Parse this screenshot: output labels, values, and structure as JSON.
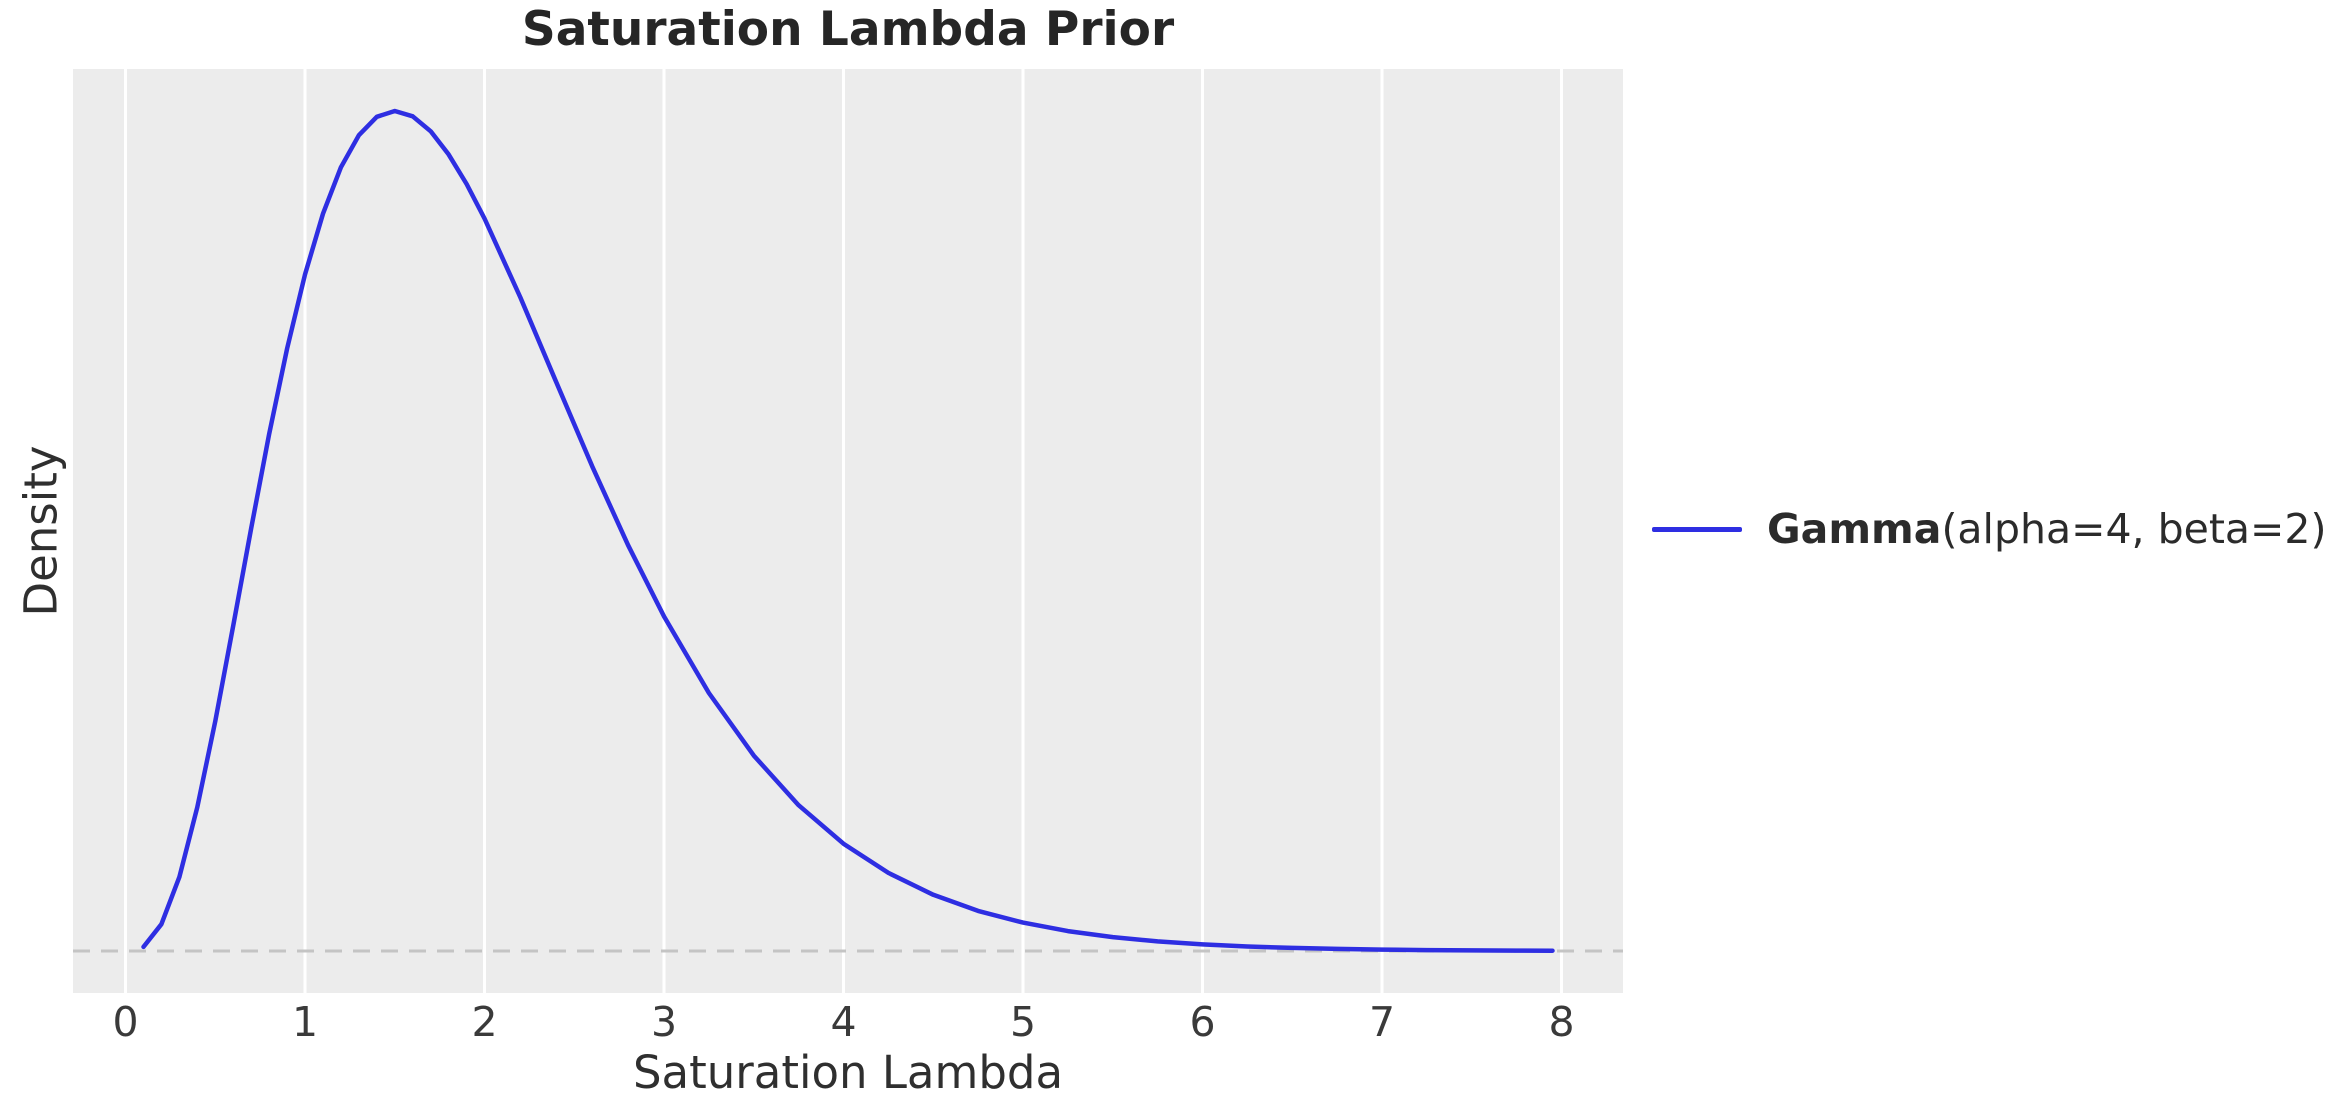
{
  "chart_data": {
    "type": "line",
    "title": "Saturation Lambda Prior",
    "xlabel": "Saturation Lambda",
    "ylabel": "Density",
    "xlim": [
      -0.2925,
      8.3425
    ],
    "ylim": [
      -0.0224,
      0.4705
    ],
    "x_ticks": [
      0,
      1,
      2,
      3,
      4,
      5,
      6,
      7,
      8
    ],
    "y_ticks": [],
    "grid": "vertical-only",
    "plot_bg_color": "#ececec",
    "grid_color": "#ffffff",
    "zero_line": {
      "y": 0,
      "style": "dashed",
      "color": "#c4c4c4"
    },
    "series": [
      {
        "name": "Gamma(alpha=4, beta=2)",
        "color": "#2e2ee2",
        "x": [
          0.1,
          0.2,
          0.3,
          0.4,
          0.5,
          0.6,
          0.7,
          0.8,
          0.9,
          1.0,
          1.1,
          1.2,
          1.3,
          1.4,
          1.5,
          1.6,
          1.7,
          1.8,
          1.9,
          2.0,
          2.2,
          2.4,
          2.6,
          2.8,
          3.0,
          3.25,
          3.5,
          3.75,
          4.0,
          4.25,
          4.5,
          4.75,
          5.0,
          5.25,
          5.5,
          5.75,
          6.0,
          6.25,
          6.5,
          6.75,
          7.0,
          7.25,
          7.5,
          7.75,
          7.95
        ],
        "y": [
          0.00218,
          0.0143,
          0.03951,
          0.07669,
          0.12263,
          0.17349,
          0.22556,
          0.27566,
          0.32134,
          0.36089,
          0.39329,
          0.41804,
          0.43518,
          0.44499,
          0.44808,
          0.44525,
          0.43727,
          0.42494,
          0.40917,
          0.39074,
          0.34861,
          0.30338,
          0.25856,
          0.21647,
          0.17847,
          0.13764,
          0.10426,
          0.07778,
          0.05725,
          0.04165,
          0.02999,
          0.02139,
          0.01513,
          0.01062,
          0.00741,
          0.00513,
          0.00354,
          0.00243,
          0.00165,
          0.00112,
          0.00076,
          0.00051,
          0.00034,
          0.00023,
          0.00017
        ]
      }
    ],
    "legend": {
      "position": "center-right-outside",
      "label_bold": "Gamma",
      "label_rest": "(alpha=4, beta=2)"
    }
  }
}
